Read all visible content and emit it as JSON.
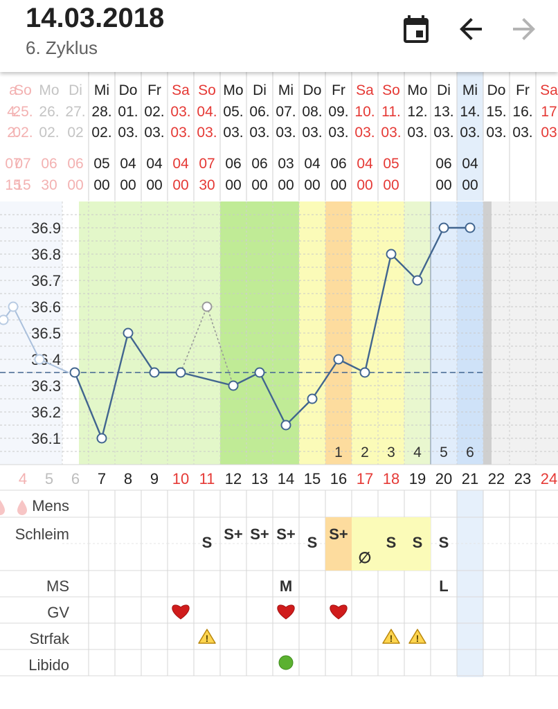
{
  "header": {
    "date": "14.03.2018",
    "cycle": "6. Zyklus",
    "icons": [
      "calendar-icon",
      "arrow-back-icon",
      "arrow-forward-icon"
    ]
  },
  "colors": {
    "red": "#e53935",
    "line": "#41658f",
    "green_light": "#e3f7c9",
    "green_mid": "#d1f2ad",
    "green_dark": "#c0eb96",
    "yellow": "#fbfbb8",
    "orange": "#fddc9e",
    "blue_light": "#e1edfb",
    "blue_today": "#cfe2f8"
  },
  "days": [
    {
      "wd": "a",
      "date": "4.",
      "month": "2.",
      "t1": "07",
      "t2": "15",
      "num": "4",
      "weekend": true,
      "faded": true
    },
    {
      "wd": "So",
      "date": "25.",
      "month": "02.",
      "t1": "07",
      "t2": "15",
      "num": "4",
      "weekend": true,
      "faded": true
    },
    {
      "wd": "Mo",
      "date": "26.",
      "month": "02.",
      "t1": "06",
      "t2": "30",
      "num": "5",
      "weekend": false,
      "faded": true
    },
    {
      "wd": "Di",
      "date": "27.",
      "month": "02",
      "t1": "06",
      "t2": "00",
      "num": "6",
      "weekend": false,
      "faded": true
    },
    {
      "wd": "Di",
      "date": "7.",
      "month": "2.",
      "t1": "6",
      "t2": "0",
      "num": "6",
      "weekend": false,
      "faded": false
    },
    {
      "wd": "Mi",
      "date": "28.",
      "month": "02.",
      "t1": "05",
      "t2": "00",
      "num": "7",
      "weekend": false,
      "faded": false
    },
    {
      "wd": "Do",
      "date": "01.",
      "month": "03.",
      "t1": "04",
      "t2": "00",
      "num": "8",
      "weekend": false,
      "faded": false
    },
    {
      "wd": "Fr",
      "date": "02.",
      "month": "03.",
      "t1": "04",
      "t2": "00",
      "num": "9",
      "weekend": false,
      "faded": false
    },
    {
      "wd": "Sa",
      "date": "03.",
      "month": "03.",
      "t1": "04",
      "t2": "00",
      "num": "10",
      "weekend": true,
      "faded": false
    },
    {
      "wd": "So",
      "date": "04.",
      "month": "03.",
      "t1": "07",
      "t2": "30",
      "num": "11",
      "weekend": true,
      "faded": false
    },
    {
      "wd": "Mo",
      "date": "05.",
      "month": "03.",
      "t1": "06",
      "t2": "00",
      "num": "12",
      "weekend": false,
      "faded": false
    },
    {
      "wd": "Di",
      "date": "06.",
      "month": "03.",
      "t1": "06",
      "t2": "00",
      "num": "13",
      "weekend": false,
      "faded": false
    },
    {
      "wd": "Mi",
      "date": "07.",
      "month": "03.",
      "t1": "03",
      "t2": "00",
      "num": "14",
      "weekend": false,
      "faded": false
    },
    {
      "wd": "Do",
      "date": "08.",
      "month": "03.",
      "t1": "04",
      "t2": "00",
      "num": "15",
      "weekend": false,
      "faded": false
    },
    {
      "wd": "Fr",
      "date": "09.",
      "month": "03.",
      "t1": "06",
      "t2": "00",
      "num": "16",
      "weekend": false,
      "faded": false
    },
    {
      "wd": "Sa",
      "date": "10.",
      "month": "03.",
      "t1": "04",
      "t2": "00",
      "num": "17",
      "weekend": true,
      "faded": false
    },
    {
      "wd": "So",
      "date": "11.",
      "month": "03.",
      "t1": "05",
      "t2": "00",
      "num": "18",
      "weekend": true,
      "faded": false
    },
    {
      "wd": "Mo",
      "date": "12.",
      "month": "03.",
      "t1": "",
      "t2": "",
      "num": "19",
      "weekend": false,
      "faded": false
    },
    {
      "wd": "Di",
      "date": "13.",
      "month": "03.",
      "t1": "06",
      "t2": "00",
      "num": "20",
      "weekend": false,
      "faded": false
    },
    {
      "wd": "Mi",
      "date": "14.",
      "month": "03.",
      "t1": "04",
      "t2": "00",
      "num": "21",
      "weekend": false,
      "faded": false
    },
    {
      "wd": "Do",
      "date": "15.",
      "month": "03.",
      "t1": "",
      "t2": "",
      "num": "22",
      "weekend": false,
      "faded": false
    },
    {
      "wd": "Fr",
      "date": "16.",
      "month": "03.",
      "t1": "",
      "t2": "",
      "num": "23",
      "weekend": false,
      "faded": false
    },
    {
      "wd": "Sa",
      "date": "17",
      "month": "03",
      "t1": "",
      "t2": "",
      "num": "24",
      "weekend": true,
      "faded": false
    }
  ],
  "y_axis": {
    "labels": [
      "36.9",
      "36.8",
      "36.7",
      "36.6",
      "36.5",
      "36.4",
      "36.3",
      "36.2",
      "36.1"
    ],
    "min": 36.0,
    "max": 37.0
  },
  "coverline": 36.35,
  "temps": [
    {
      "day": "25.02.",
      "value": 36.55,
      "faded": true
    },
    {
      "day": "26.02.",
      "value": 36.6,
      "faded": true
    },
    {
      "day": "27.02.",
      "value": 36.4,
      "faded": true
    },
    {
      "day": "27.02.",
      "value": 36.35,
      "faded": false
    },
    {
      "day": "28.02.",
      "value": 36.1,
      "faded": false
    },
    {
      "day": "01.03.",
      "value": 36.5,
      "faded": false
    },
    {
      "day": "02.03.",
      "value": 36.35,
      "faded": false
    },
    {
      "day": "03.03.",
      "value": 36.35,
      "faded": false
    },
    {
      "day": "04.03.",
      "value": 36.6,
      "faded": false,
      "excluded": true
    },
    {
      "day": "05.03.",
      "value": 36.3,
      "faded": false
    },
    {
      "day": "06.03.",
      "value": 36.35,
      "faded": false
    },
    {
      "day": "07.03.",
      "value": 36.15,
      "faded": false
    },
    {
      "day": "08.03.",
      "value": 36.25,
      "faded": false
    },
    {
      "day": "09.03.",
      "value": 36.4,
      "faded": false
    },
    {
      "day": "10.03.",
      "value": 36.35,
      "faded": false
    },
    {
      "day": "11.03.",
      "value": 36.8,
      "faded": false
    },
    {
      "day": "12.03.",
      "value": 36.7,
      "faded": false
    },
    {
      "day": "13.03.",
      "value": 36.9,
      "faded": false
    },
    {
      "day": "14.03.",
      "value": 36.9,
      "faded": false
    }
  ],
  "post_ovulation_count": [
    "1",
    "2",
    "3",
    "4",
    "5",
    "6"
  ],
  "rows": {
    "mens_label": "Mens",
    "schleim_label": "Schleim",
    "ms_label": "MS",
    "gv_label": "GV",
    "strfak_label": "Strfak",
    "libido_label": "Libido"
  },
  "schleim": [
    {
      "day": "04.03.",
      "value": "S"
    },
    {
      "day": "05.03.",
      "value": "S+"
    },
    {
      "day": "06.03.",
      "value": "S+"
    },
    {
      "day": "07.03.",
      "value": "S+"
    },
    {
      "day": "08.03.",
      "value": "S"
    },
    {
      "day": "09.03.",
      "value": "S+"
    },
    {
      "day": "10.03.",
      "value": "∅"
    },
    {
      "day": "11.03.",
      "value": "S"
    },
    {
      "day": "12.03.",
      "value": "S"
    },
    {
      "day": "13.03.",
      "value": "S"
    }
  ],
  "ms": [
    {
      "day": "07.03.",
      "value": "M"
    },
    {
      "day": "13.03.",
      "value": "L"
    }
  ],
  "gv": [
    "03.03.",
    "07.03.",
    "09.03."
  ],
  "strfak": [
    "04.03.",
    "11.03.",
    "12.03."
  ],
  "libido": [
    "07.03."
  ]
}
